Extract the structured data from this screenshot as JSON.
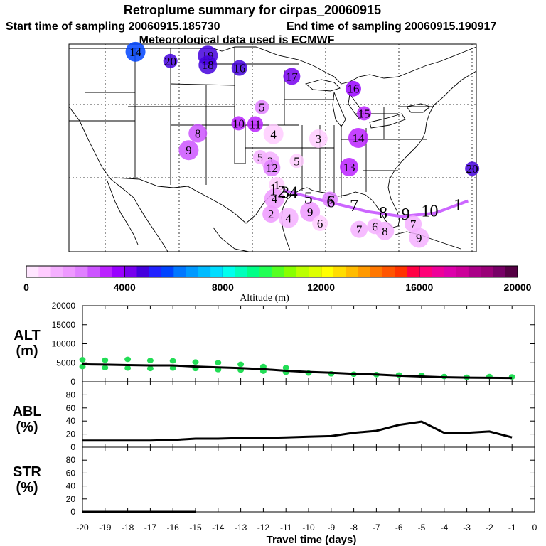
{
  "title": "Retroplume summary for cirpas_20060915",
  "start_label": "Start time of sampling 20060915.185730",
  "end_label": "End time of sampling 20060915.190917",
  "met_label": "Meteorological data used is ECMWF",
  "colors": {
    "track": "#cc66ff",
    "alt_dots": "#22dd55",
    "line": "#000000"
  },
  "chart_data": [
    {
      "type": "scatter",
      "name": "map",
      "title": "Retroplume summary for cirpas_20060915",
      "points": [
        {
          "lon": -114.0,
          "lat": 49.0,
          "label": "14",
          "alt": 5800
        },
        {
          "lon": -109.8,
          "lat": 47.8,
          "label": "20",
          "alt": 4800
        },
        {
          "lon": -105.3,
          "lat": 48.5,
          "label": "19",
          "alt": 4600
        },
        {
          "lon": -105.3,
          "lat": 47.3,
          "label": "18",
          "alt": 4500
        },
        {
          "lon": -101.5,
          "lat": 46.9,
          "label": "16",
          "alt": 4500
        },
        {
          "lon": -95.2,
          "lat": 45.8,
          "label": "17",
          "alt": 4200
        },
        {
          "lon": -87.8,
          "lat": 44.2,
          "label": "16",
          "alt": 3600
        },
        {
          "lon": -98.8,
          "lat": 41.8,
          "label": "5",
          "alt": 2200
        },
        {
          "lon": -86.5,
          "lat": 41.0,
          "label": "15",
          "alt": 3200
        },
        {
          "lon": -101.6,
          "lat": 39.7,
          "label": "10",
          "alt": 3000
        },
        {
          "lon": -99.6,
          "lat": 39.6,
          "label": "11",
          "alt": 3000
        },
        {
          "lon": -106.5,
          "lat": 38.4,
          "label": "8",
          "alt": 2800
        },
        {
          "lon": -97.4,
          "lat": 38.3,
          "label": "4",
          "alt": 800
        },
        {
          "lon": -92.0,
          "lat": 37.7,
          "label": "3",
          "alt": 500
        },
        {
          "lon": -87.2,
          "lat": 37.8,
          "label": "14",
          "alt": 3400
        },
        {
          "lon": -107.6,
          "lat": 36.2,
          "label": "9",
          "alt": 2500
        },
        {
          "lon": -99.0,
          "lat": 35.3,
          "label": "5",
          "alt": 1200
        },
        {
          "lon": -97.8,
          "lat": 34.8,
          "label": "3",
          "alt": 1000
        },
        {
          "lon": -94.6,
          "lat": 34.8,
          "label": "5",
          "alt": 900
        },
        {
          "lon": -97.6,
          "lat": 33.9,
          "label": "12",
          "alt": 2000
        },
        {
          "lon": -88.3,
          "lat": 34.0,
          "label": "13",
          "alt": 3400
        },
        {
          "lon": -73.5,
          "lat": 33.8,
          "label": "20",
          "alt": 4500
        },
        {
          "lon": -97.0,
          "lat": 31.7,
          "label": "1",
          "alt": 700
        },
        {
          "lon": -97.3,
          "lat": 29.9,
          "label": "4",
          "alt": 1500
        },
        {
          "lon": -90.6,
          "lat": 29.8,
          "label": "6",
          "alt": 2000
        },
        {
          "lon": -97.7,
          "lat": 27.9,
          "label": "2",
          "alt": 1700
        },
        {
          "lon": -95.6,
          "lat": 27.4,
          "label": "4",
          "alt": 1200
        },
        {
          "lon": -93.0,
          "lat": 28.2,
          "label": "9",
          "alt": 1500
        },
        {
          "lon": -91.8,
          "lat": 26.7,
          "label": "6",
          "alt": 800
        },
        {
          "lon": -87.1,
          "lat": 25.9,
          "label": "7",
          "alt": 1000
        },
        {
          "lon": -85.2,
          "lat": 26.3,
          "label": "6",
          "alt": 1000
        },
        {
          "lon": -84.0,
          "lat": 25.7,
          "label": "8",
          "alt": 1000
        },
        {
          "lon": -80.6,
          "lat": 26.6,
          "label": "7",
          "alt": 1000
        },
        {
          "lon": -79.9,
          "lat": 24.8,
          "label": "9",
          "alt": 1000
        }
      ],
      "track": [
        {
          "lon": -96.2,
          "lat": 31.0
        },
        {
          "lon": -92.0,
          "lat": 29.8
        },
        {
          "lon": -86.0,
          "lat": 28.2
        },
        {
          "lon": -82.0,
          "lat": 27.6
        },
        {
          "lon": -78.0,
          "lat": 28.0
        },
        {
          "lon": -74.0,
          "lat": 29.6
        }
      ],
      "track_labels": [
        {
          "lon": -97.4,
          "lat": 31.1,
          "label": "1"
        },
        {
          "lon": -96.4,
          "lat": 30.8,
          "label": "2"
        },
        {
          "lon": -96.0,
          "lat": 30.7,
          "label": "3"
        },
        {
          "lon": -95.0,
          "lat": 30.7,
          "label": "4"
        },
        {
          "lon": -93.2,
          "lat": 30.0,
          "label": "5"
        },
        {
          "lon": -90.5,
          "lat": 29.5,
          "label": "6"
        },
        {
          "lon": -87.7,
          "lat": 29.0,
          "label": "7"
        },
        {
          "lon": -84.2,
          "lat": 28.1,
          "label": "8"
        },
        {
          "lon": -81.5,
          "lat": 27.9,
          "label": "9"
        },
        {
          "lon": -78.6,
          "lat": 28.3,
          "label": "10"
        },
        {
          "lon": -75.2,
          "lat": 29.1,
          "label": "1"
        }
      ],
      "lon_range": [
        -122,
        -73
      ],
      "lat_range": [
        23,
        50
      ]
    },
    {
      "type": "colorbar",
      "name": "altitude-colorbar",
      "xlabel": "Altitude (m)",
      "ticks": [
        "0",
        "4000",
        "8000",
        "12000",
        "16000",
        "20000"
      ],
      "range": [
        0,
        20000
      ],
      "colors": [
        "#ffe6ff",
        "#ffccff",
        "#f5b0ff",
        "#ee99ff",
        "#e080ff",
        "#cc55ff",
        "#bb22ff",
        "#9900ff",
        "#7700ee",
        "#4400dd",
        "#2222ff",
        "#0044ff",
        "#0077ff",
        "#0099ff",
        "#00bbff",
        "#00ddff",
        "#00ffee",
        "#00ffbb",
        "#00ff88",
        "#22ff55",
        "#55ff22",
        "#88ff00",
        "#bbff00",
        "#ddff00",
        "#ffff00",
        "#ffdd00",
        "#ffbb00",
        "#ff9900",
        "#ff7700",
        "#ff5500",
        "#ff3300",
        "#ff0044",
        "#ff0077",
        "#ee0099",
        "#dd00aa",
        "#cc0099",
        "#aa0088",
        "#990077",
        "#770066",
        "#550044"
      ]
    },
    {
      "type": "line",
      "name": "ALT",
      "ylabel": "ALT (m)",
      "ylabel_lines": [
        "ALT",
        "(m)"
      ],
      "yticks": [
        "20000",
        "15000",
        "10000",
        "5000",
        "0"
      ],
      "ylim": [
        0,
        20000
      ],
      "x": [
        -20,
        -19,
        -18,
        -17,
        -16,
        -15,
        -14,
        -13,
        -12,
        -11,
        -10,
        -9,
        -8,
        -7,
        -6,
        -5,
        -4,
        -3,
        -2,
        -1
      ],
      "values": [
        4600,
        4500,
        4400,
        4300,
        4300,
        4000,
        3800,
        3600,
        3300,
        2900,
        2600,
        2400,
        2100,
        1900,
        1600,
        1400,
        1200,
        1100,
        1050,
        1000
      ],
      "scatter": [
        {
          "x": -20,
          "y": 4000
        },
        {
          "x": -20,
          "y": 5800
        },
        {
          "x": -19,
          "y": 3700
        },
        {
          "x": -19,
          "y": 5700
        },
        {
          "x": -18,
          "y": 3600
        },
        {
          "x": -18,
          "y": 5900
        },
        {
          "x": -17,
          "y": 3500
        },
        {
          "x": -17,
          "y": 5600
        },
        {
          "x": -16,
          "y": 3600
        },
        {
          "x": -16,
          "y": 5500
        },
        {
          "x": -15,
          "y": 3500
        },
        {
          "x": -15,
          "y": 5200
        },
        {
          "x": -14,
          "y": 3200
        },
        {
          "x": -14,
          "y": 5000
        },
        {
          "x": -13,
          "y": 3100
        },
        {
          "x": -13,
          "y": 4600
        },
        {
          "x": -12,
          "y": 2800
        },
        {
          "x": -12,
          "y": 4000
        },
        {
          "x": -11,
          "y": 2500
        },
        {
          "x": -11,
          "y": 3700
        },
        {
          "x": -10,
          "y": 2300
        },
        {
          "x": -9,
          "y": 2100
        },
        {
          "x": -8,
          "y": 2000
        },
        {
          "x": -7,
          "y": 1900
        },
        {
          "x": -6,
          "y": 1800
        },
        {
          "x": -5,
          "y": 1700
        },
        {
          "x": -4,
          "y": 1400
        },
        {
          "x": -3,
          "y": 1200
        },
        {
          "x": -2,
          "y": 1400
        },
        {
          "x": -1,
          "y": 1300
        }
      ]
    },
    {
      "type": "line",
      "name": "ABL",
      "ylabel": "ABL (%)",
      "ylabel_lines": [
        "ABL",
        "(%)"
      ],
      "yticks": [
        "80",
        "60",
        "40",
        "20",
        "0"
      ],
      "ylim": [
        0,
        100
      ],
      "x": [
        -20,
        -19,
        -18,
        -17,
        -16,
        -15,
        -14,
        -13,
        -12,
        -11,
        -10,
        -9,
        -8,
        -7,
        -6,
        -5,
        -4,
        -3,
        -2,
        -1
      ],
      "values": [
        10,
        10,
        10,
        10,
        11,
        13,
        13,
        14,
        14,
        15,
        16,
        17,
        22,
        25,
        34,
        39,
        22,
        22,
        24,
        15
      ]
    },
    {
      "type": "line",
      "name": "STR",
      "ylabel": "STR (%)",
      "ylabel_lines": [
        "STR",
        "(%)"
      ],
      "yticks": [
        "80",
        "60",
        "40",
        "20",
        "0"
      ],
      "ylim": [
        0,
        100
      ],
      "x": [
        -20,
        -19,
        -18,
        -17,
        -16,
        -15
      ],
      "values": [
        0,
        0,
        0,
        0,
        0,
        0
      ]
    }
  ],
  "xaxis": {
    "label": "Travel time (days)",
    "ticks": [
      "-20",
      "-19",
      "-18",
      "-17",
      "-16",
      "-15",
      "-14",
      "-13",
      "-12",
      "-11",
      "-10",
      "-9",
      "-8",
      "-7",
      "-6",
      "-5",
      "-4",
      "-3",
      "-2",
      "-1",
      "0"
    ],
    "range": [
      -20,
      0
    ]
  }
}
